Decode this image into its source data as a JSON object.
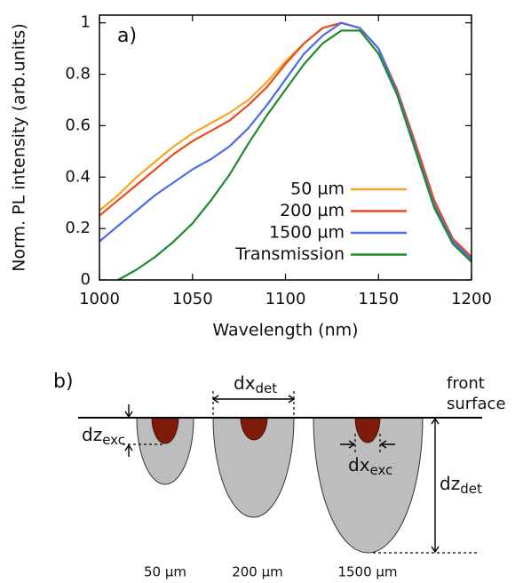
{
  "chart_data": {
    "type": "line",
    "label": "a)",
    "xlabel": "Wavelength (nm)",
    "ylabel": "Norm. PL intensity (arb.units)",
    "x": [
      1000,
      1010,
      1020,
      1030,
      1040,
      1050,
      1060,
      1070,
      1080,
      1090,
      1100,
      1110,
      1120,
      1130,
      1140,
      1150,
      1160,
      1170,
      1180,
      1190,
      1200
    ],
    "series": [
      {
        "name": "50 µm",
        "color": "#f5a623",
        "values": [
          0.27,
          0.33,
          0.4,
          0.46,
          0.52,
          0.57,
          0.61,
          0.65,
          0.7,
          0.77,
          0.85,
          0.92,
          0.98,
          1.0,
          0.98,
          0.9,
          0.74,
          0.52,
          0.3,
          0.16,
          0.09
        ]
      },
      {
        "name": "200 µm",
        "color": "#ea4a1e",
        "values": [
          0.25,
          0.31,
          0.37,
          0.43,
          0.49,
          0.54,
          0.58,
          0.62,
          0.68,
          0.75,
          0.84,
          0.92,
          0.98,
          1.0,
          0.98,
          0.9,
          0.74,
          0.53,
          0.31,
          0.16,
          0.09
        ]
      },
      {
        "name": "1500 µm",
        "color": "#4a6cf0",
        "values": [
          0.15,
          0.21,
          0.27,
          0.33,
          0.38,
          0.43,
          0.47,
          0.52,
          0.59,
          0.68,
          0.78,
          0.88,
          0.95,
          1.0,
          0.98,
          0.9,
          0.73,
          0.51,
          0.29,
          0.15,
          0.08
        ]
      },
      {
        "name": "Transmission",
        "color": "#1e8a2a",
        "values": [
          null,
          0.0,
          0.04,
          0.09,
          0.15,
          0.22,
          0.31,
          0.41,
          0.53,
          0.64,
          0.74,
          0.84,
          0.92,
          0.97,
          0.97,
          0.88,
          0.72,
          0.5,
          0.28,
          0.14,
          0.07
        ]
      }
    ],
    "xlim": [
      1000,
      1200
    ],
    "xticks": [
      1000,
      1050,
      1100,
      1150,
      1200
    ],
    "ylim": [
      0,
      1.03
    ],
    "yticks": [
      0,
      0.2,
      0.4,
      0.6,
      0.8,
      1
    ],
    "legend": "right"
  },
  "diagram": {
    "label": "b)",
    "front": "front",
    "surface": "surface",
    "dx_det": {
      "main": "dx",
      "sub": "det"
    },
    "dz_exc": {
      "main": "dz",
      "sub": "exc"
    },
    "dx_exc": {
      "main": "dx",
      "sub": "exc"
    },
    "dz_det": {
      "main": "dz",
      "sub": "det"
    },
    "sizes": [
      "50 µm",
      "200 µm",
      "1500 µm"
    ]
  }
}
